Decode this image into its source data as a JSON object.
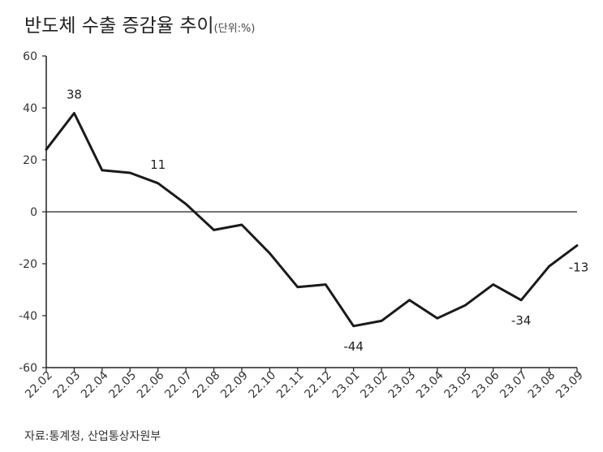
{
  "title": "반도체 수출 증감율 추이",
  "unit": "(단위:%)",
  "source": "자료:통계청, 산업통상자원부",
  "chart_data": {
    "type": "line",
    "title": "반도체 수출 증감율 추이",
    "unit": "%",
    "categories": [
      "22.02",
      "22.03",
      "22.04",
      "22.05",
      "22.06",
      "22.07",
      "22.08",
      "22.09",
      "22.10",
      "22.11",
      "22.12",
      "23.01",
      "23.02",
      "23.03",
      "23.04",
      "23.05",
      "23.06",
      "23.07",
      "23.08",
      "23.09"
    ],
    "series": [
      {
        "values": [
          24,
          38,
          16,
          15,
          11,
          3,
          -7,
          -5,
          -16,
          -29,
          -28,
          -44,
          -42,
          -34,
          -41,
          -36,
          -28,
          -34,
          -21,
          -13
        ]
      }
    ],
    "data_labels": [
      {
        "index": 1,
        "text": "38"
      },
      {
        "index": 4,
        "text": "11"
      },
      {
        "index": 11,
        "text": "-44"
      },
      {
        "index": 17,
        "text": "-34"
      },
      {
        "index": 19,
        "text": "-13"
      }
    ],
    "yticks": [
      60,
      40,
      20,
      0,
      -20,
      -40,
      -60
    ],
    "ylim": [
      -60,
      60
    ],
    "color": "#1a1a1a",
    "grid": false
  }
}
